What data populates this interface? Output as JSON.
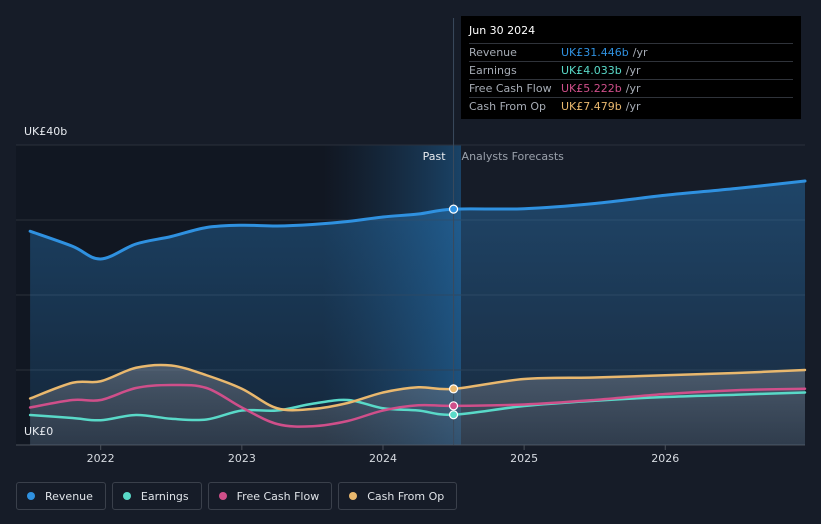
{
  "chart_data": {
    "type": "line",
    "x_unit": "year",
    "xlim": [
      2021.4,
      2026.99
    ],
    "ylim": [
      0,
      40
    ],
    "x_ticks": [
      "2022",
      "2023",
      "2024",
      "2025",
      "2026"
    ],
    "y_tick_labels": {
      "top": "UK£40b",
      "bottom": "UK£0"
    },
    "divider_x": 2024.5,
    "past_label": "Past",
    "forecast_label": "Analysts Forecasts",
    "series": [
      {
        "name": "Revenue",
        "color": "#2f91e0",
        "fill": true,
        "x": [
          2021.5,
          2021.8,
          2022.0,
          2022.25,
          2022.5,
          2022.75,
          2023.0,
          2023.25,
          2023.5,
          2023.75,
          2024.0,
          2024.25,
          2024.5,
          2025.0,
          2025.5,
          2026.0,
          2026.5,
          2026.99
        ],
        "y": [
          28.5,
          26.5,
          24.8,
          26.8,
          27.8,
          29.0,
          29.3,
          29.2,
          29.4,
          29.8,
          30.4,
          30.8,
          31.446,
          31.5,
          32.2,
          33.3,
          34.2,
          35.2
        ]
      },
      {
        "name": "Earnings",
        "color": "#59d9c8",
        "fill": false,
        "x": [
          2021.5,
          2021.8,
          2022.0,
          2022.25,
          2022.5,
          2022.75,
          2023.0,
          2023.25,
          2023.5,
          2023.75,
          2024.0,
          2024.25,
          2024.5,
          2025.0,
          2025.5,
          2026.0,
          2026.5,
          2026.99
        ],
        "y": [
          4.0,
          3.6,
          3.3,
          4.0,
          3.5,
          3.4,
          4.6,
          4.6,
          5.5,
          6.0,
          4.9,
          4.6,
          4.033,
          5.2,
          5.9,
          6.4,
          6.7,
          7.0
        ]
      },
      {
        "name": "Free Cash Flow",
        "color": "#cf4f8a",
        "fill": false,
        "x": [
          2021.5,
          2021.8,
          2022.0,
          2022.25,
          2022.5,
          2022.75,
          2023.0,
          2023.25,
          2023.5,
          2023.75,
          2024.0,
          2024.25,
          2024.5,
          2025.0,
          2025.5,
          2026.0,
          2026.5,
          2026.99
        ],
        "y": [
          5.0,
          6.0,
          6.0,
          7.6,
          8.0,
          7.6,
          5.0,
          2.8,
          2.5,
          3.2,
          4.6,
          5.3,
          5.222,
          5.4,
          6.0,
          6.8,
          7.3,
          7.5
        ]
      },
      {
        "name": "Cash From Op",
        "color": "#e9b86e",
        "fill": false,
        "x": [
          2021.5,
          2021.8,
          2022.0,
          2022.25,
          2022.5,
          2022.75,
          2023.0,
          2023.25,
          2023.5,
          2023.75,
          2024.0,
          2024.25,
          2024.5,
          2025.0,
          2025.5,
          2026.0,
          2026.5,
          2026.99
        ],
        "y": [
          6.2,
          8.3,
          8.5,
          10.3,
          10.6,
          9.3,
          7.5,
          4.9,
          4.8,
          5.6,
          7.0,
          7.7,
          7.479,
          8.8,
          9.0,
          9.3,
          9.6,
          10.0
        ]
      }
    ]
  },
  "tooltip": {
    "date": "Jun 30 2024",
    "unit": "/yr",
    "rows": [
      {
        "name": "Revenue",
        "value": "UK£31.446b",
        "color": "#2f91e0"
      },
      {
        "name": "Earnings",
        "value": "UK£4.033b",
        "color": "#59d9c8"
      },
      {
        "name": "Free Cash Flow",
        "value": "UK£5.222b",
        "color": "#cf4f8a"
      },
      {
        "name": "Cash From Op",
        "value": "UK£7.479b",
        "color": "#e9b86e"
      }
    ]
  },
  "legend": [
    {
      "label": "Revenue",
      "color": "#2f91e0"
    },
    {
      "label": "Earnings",
      "color": "#59d9c8"
    },
    {
      "label": "Free Cash Flow",
      "color": "#cf4f8a"
    },
    {
      "label": "Cash From Op",
      "color": "#e9b86e"
    }
  ]
}
